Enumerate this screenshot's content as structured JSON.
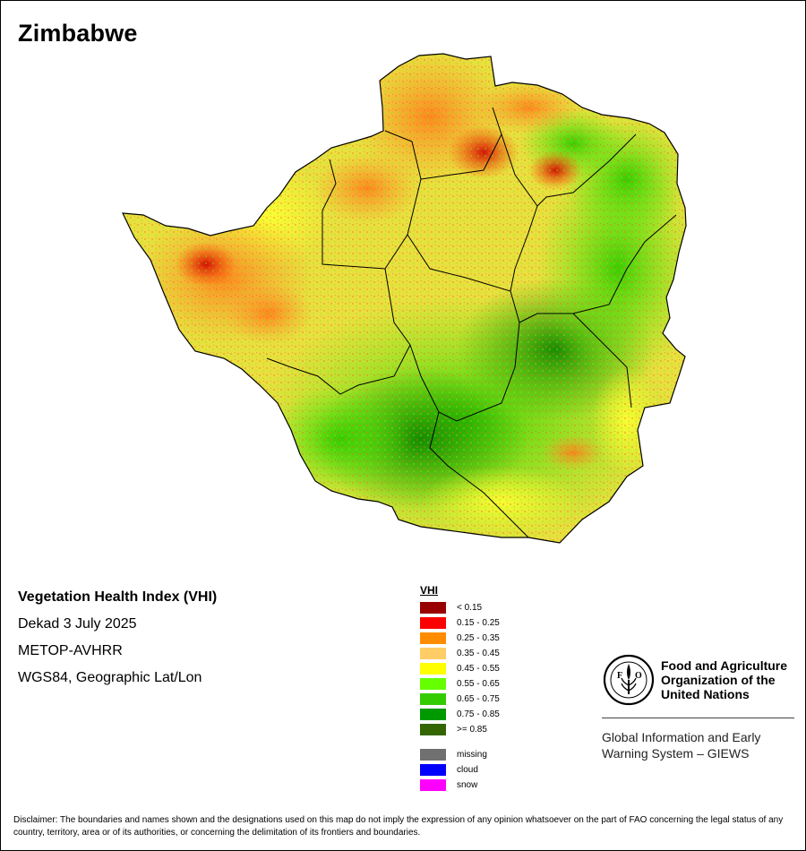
{
  "map": {
    "title": "Zimbabwe"
  },
  "info": {
    "index_title": "Vegetation Health Index (VHI)",
    "period": "Dekad 3 July 2025",
    "sensor": "METOP-AVHRR",
    "projection": "WGS84, Geographic Lat/Lon"
  },
  "legend": {
    "title": "VHI",
    "classes": [
      {
        "label": "< 0.15",
        "color": "#990000"
      },
      {
        "label": "0.15 - 0.25",
        "color": "#ff0000"
      },
      {
        "label": "0.25 - 0.35",
        "color": "#ff8c00"
      },
      {
        "label": "0.35 - 0.45",
        "color": "#ffcc66"
      },
      {
        "label": "0.45 - 0.55",
        "color": "#ffff00"
      },
      {
        "label": "0.55 - 0.65",
        "color": "#66ff00"
      },
      {
        "label": "0.65 - 0.75",
        "color": "#33cc00"
      },
      {
        "label": "0.75 - 0.85",
        "color": "#009900"
      },
      {
        "label": ">= 0.85",
        "color": "#336600"
      }
    ],
    "special": [
      {
        "label": "missing",
        "color": "#707070"
      },
      {
        "label": "cloud",
        "color": "#0000ff"
      },
      {
        "label": "snow",
        "color": "#ff00ff"
      }
    ]
  },
  "fao": {
    "logo_letters": "FAO",
    "logo_motto": "FIAT PANIS",
    "name_line1": "Food and Agriculture",
    "name_line2": "Organization of the",
    "name_line3": "United Nations",
    "giews_line1": "Global Information and Early",
    "giews_line2": "Warning System – GIEWS"
  },
  "disclaimer": "Disclaimer: The boundaries and names shown and the designations used on this map do not imply the expression of any opinion whatsoever on the part of FAO concerning the legal status of any country, territory, area or of its authorities, or concerning the delimitation of its frontiers and boundaries."
}
